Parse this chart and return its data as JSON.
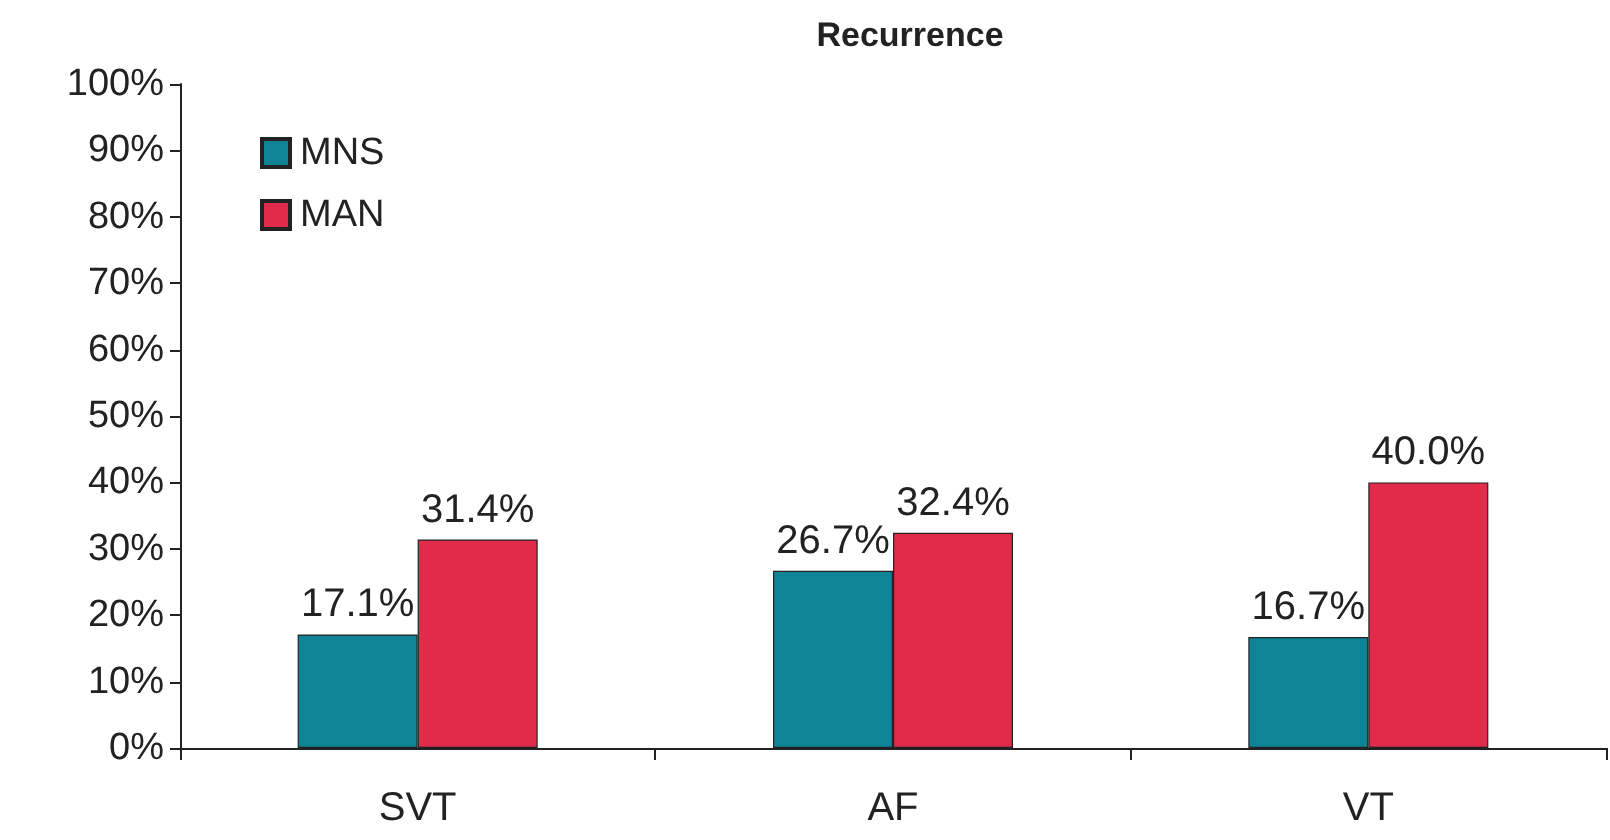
{
  "chart_data": {
    "type": "bar",
    "title": "Recurrence",
    "categories": [
      "SVT",
      "AF",
      "VT"
    ],
    "series": [
      {
        "name": "MNS",
        "color": "#0e8496",
        "values": [
          17.1,
          26.7,
          16.7
        ],
        "value_labels": [
          "17.1%",
          "26.7%",
          "16.7%"
        ]
      },
      {
        "name": "MAN",
        "color": "#e02b4a",
        "values": [
          31.4,
          32.4,
          40.0
        ],
        "value_labels": [
          "31.4%",
          "32.4%",
          "40.0%"
        ]
      }
    ],
    "ylim": [
      0,
      100
    ],
    "yticks": [
      {
        "value": 0,
        "label": "0%"
      },
      {
        "value": 10,
        "label": "10%"
      },
      {
        "value": 20,
        "label": "20%"
      },
      {
        "value": 30,
        "label": "30%"
      },
      {
        "value": 40,
        "label": "40%"
      },
      {
        "value": 50,
        "label": "50%"
      },
      {
        "value": 60,
        "label": "60%"
      },
      {
        "value": 70,
        "label": "70%"
      },
      {
        "value": 80,
        "label": "80%"
      },
      {
        "value": 90,
        "label": "90%"
      },
      {
        "value": 100,
        "label": "100%"
      }
    ],
    "grid": false,
    "legend": "top left"
  }
}
